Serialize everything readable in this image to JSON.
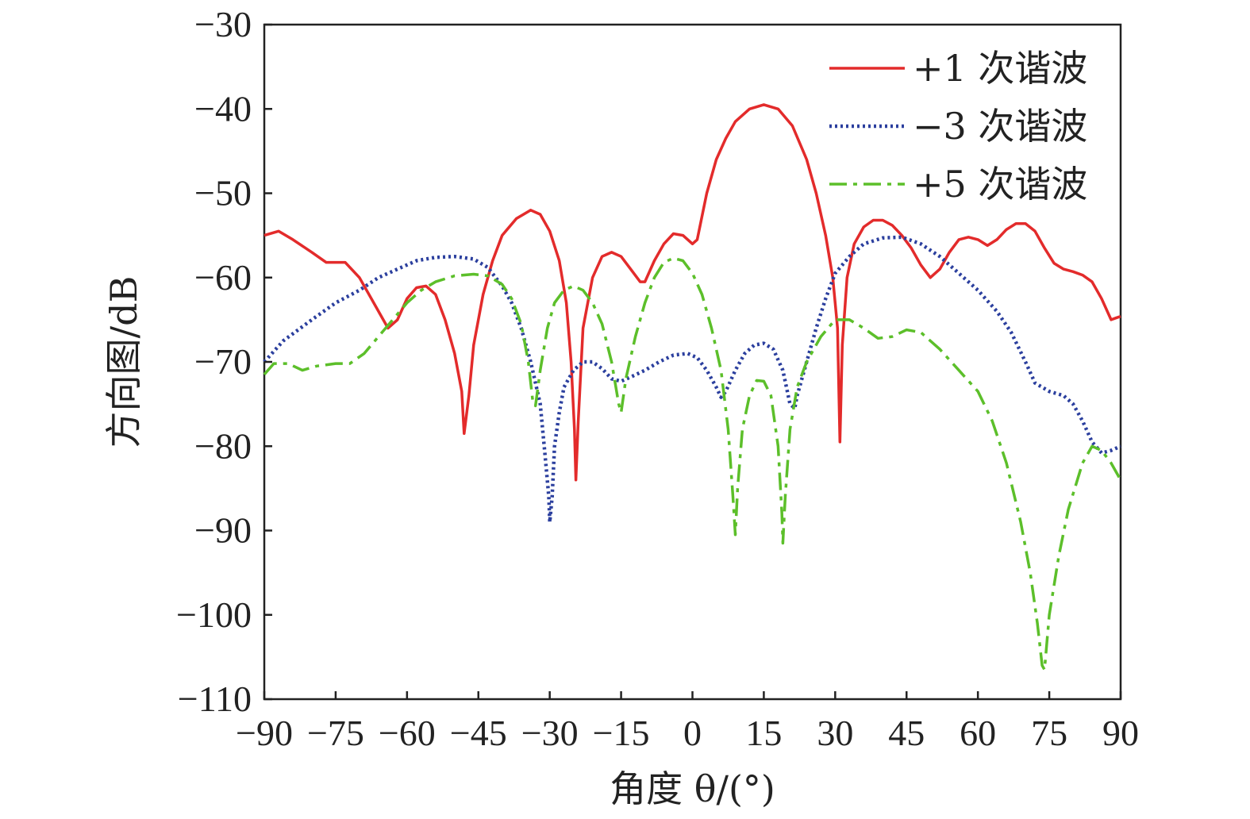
{
  "chart_data": {
    "type": "line",
    "title": "",
    "xlabel": "角度 θ/(°)",
    "ylabel": "方向图/dB",
    "xlim": [
      -90,
      90
    ],
    "ylim": [
      -110,
      -30
    ],
    "xticks": [
      -90,
      -75,
      -60,
      -45,
      -30,
      -15,
      0,
      15,
      30,
      45,
      60,
      75,
      90
    ],
    "yticks": [
      -30,
      -40,
      -50,
      -60,
      -70,
      -80,
      -90,
      -100,
      -110
    ],
    "xtick_labels": [
      "−90",
      "−75",
      "−60",
      "−45",
      "−30",
      "−15",
      "0",
      "15",
      "30",
      "45",
      "60",
      "75",
      "90"
    ],
    "ytick_labels": [
      "−30",
      "−40",
      "−50",
      "−60",
      "−70",
      "−80",
      "−90",
      "−100",
      "−110"
    ],
    "grid": false,
    "legend_position": "top-right",
    "series": [
      {
        "name": "+1 次谐波",
        "color": "#e32b2b",
        "style": "solid",
        "points": [
          [
            -90,
            -55
          ],
          [
            -87,
            -54.5
          ],
          [
            -84,
            -55.5
          ],
          [
            -80,
            -57
          ],
          [
            -77,
            -58.2
          ],
          [
            -73,
            -58.2
          ],
          [
            -70,
            -60
          ],
          [
            -67,
            -63
          ],
          [
            -64,
            -66
          ],
          [
            -62,
            -65
          ],
          [
            -60,
            -62.5
          ],
          [
            -58,
            -61.2
          ],
          [
            -56,
            -61
          ],
          [
            -54,
            -62
          ],
          [
            -52,
            -65
          ],
          [
            -50,
            -69
          ],
          [
            -48.5,
            -73.5
          ],
          [
            -48,
            -78.5
          ],
          [
            -47,
            -74
          ],
          [
            -46,
            -68
          ],
          [
            -44,
            -62
          ],
          [
            -42,
            -58
          ],
          [
            -40,
            -55
          ],
          [
            -37,
            -53
          ],
          [
            -34,
            -52
          ],
          [
            -32,
            -52.5
          ],
          [
            -30,
            -54.5
          ],
          [
            -28,
            -58
          ],
          [
            -26.5,
            -63
          ],
          [
            -25.5,
            -70
          ],
          [
            -24.8,
            -78
          ],
          [
            -24.5,
            -84
          ],
          [
            -24,
            -77
          ],
          [
            -23,
            -66
          ],
          [
            -21,
            -60
          ],
          [
            -19,
            -57.5
          ],
          [
            -17,
            -57
          ],
          [
            -15,
            -57.5
          ],
          [
            -13,
            -59
          ],
          [
            -11,
            -60.5
          ],
          [
            -10,
            -60.5
          ],
          [
            -8,
            -58
          ],
          [
            -6,
            -56
          ],
          [
            -4,
            -54.8
          ],
          [
            -2,
            -55
          ],
          [
            0,
            -56
          ],
          [
            1,
            -55.5
          ],
          [
            3,
            -50
          ],
          [
            5,
            -46
          ],
          [
            7,
            -43.5
          ],
          [
            9,
            -41.5
          ],
          [
            12,
            -40
          ],
          [
            15,
            -39.5
          ],
          [
            18,
            -40
          ],
          [
            21,
            -42
          ],
          [
            24,
            -46
          ],
          [
            26,
            -50
          ],
          [
            28,
            -55
          ],
          [
            29.5,
            -60
          ],
          [
            30.5,
            -66
          ],
          [
            31,
            -79.5
          ],
          [
            31.5,
            -68
          ],
          [
            32.5,
            -60
          ],
          [
            34,
            -56
          ],
          [
            36,
            -54
          ],
          [
            38,
            -53.2
          ],
          [
            40,
            -53.2
          ],
          [
            42,
            -53.8
          ],
          [
            44,
            -55
          ],
          [
            46,
            -56.5
          ],
          [
            48,
            -58.5
          ],
          [
            50,
            -60
          ],
          [
            52,
            -59
          ],
          [
            54,
            -57
          ],
          [
            56,
            -55.5
          ],
          [
            58,
            -55.2
          ],
          [
            60,
            -55.5
          ],
          [
            62,
            -56.2
          ],
          [
            64,
            -55.5
          ],
          [
            66,
            -54.3
          ],
          [
            68,
            -53.6
          ],
          [
            70,
            -53.6
          ],
          [
            72,
            -54.5
          ],
          [
            74,
            -56.5
          ],
          [
            76,
            -58.3
          ],
          [
            78,
            -59
          ],
          [
            80,
            -59.3
          ],
          [
            82,
            -59.7
          ],
          [
            84,
            -60.5
          ],
          [
            86,
            -62.5
          ],
          [
            88,
            -65
          ],
          [
            89,
            -64.8
          ],
          [
            90,
            -64.6
          ]
        ]
      },
      {
        "name": "−3 次谐波",
        "color": "#2b3f9e",
        "style": "dotted",
        "points": [
          [
            -90,
            -70
          ],
          [
            -86,
            -67.5
          ],
          [
            -80,
            -65
          ],
          [
            -75,
            -63
          ],
          [
            -70,
            -61.5
          ],
          [
            -66,
            -60
          ],
          [
            -62,
            -59
          ],
          [
            -58,
            -58
          ],
          [
            -54,
            -57.6
          ],
          [
            -50,
            -57.5
          ],
          [
            -46,
            -57.8
          ],
          [
            -43,
            -58.8
          ],
          [
            -40,
            -61
          ],
          [
            -38,
            -63
          ],
          [
            -36,
            -66
          ],
          [
            -34,
            -70
          ],
          [
            -32,
            -75
          ],
          [
            -31,
            -81
          ],
          [
            -30.2,
            -86
          ],
          [
            -30,
            -89
          ],
          [
            -29.5,
            -86
          ],
          [
            -29,
            -80
          ],
          [
            -28,
            -76
          ],
          [
            -27,
            -73
          ],
          [
            -25,
            -71
          ],
          [
            -23,
            -70
          ],
          [
            -21,
            -70
          ],
          [
            -19,
            -70.8
          ],
          [
            -17,
            -72
          ],
          [
            -15,
            -72.3
          ],
          [
            -13,
            -71.8
          ],
          [
            -10,
            -71
          ],
          [
            -7,
            -70
          ],
          [
            -4,
            -69.2
          ],
          [
            -1,
            -69
          ],
          [
            1,
            -69.5
          ],
          [
            3,
            -71
          ],
          [
            5,
            -73
          ],
          [
            6,
            -74.2
          ],
          [
            7,
            -73.5
          ],
          [
            9,
            -71
          ],
          [
            11,
            -69
          ],
          [
            13,
            -68
          ],
          [
            15,
            -67.8
          ],
          [
            17,
            -68.5
          ],
          [
            19,
            -71
          ],
          [
            20.5,
            -75
          ],
          [
            21.5,
            -75.5
          ],
          [
            22,
            -74
          ],
          [
            24,
            -70
          ],
          [
            26,
            -66
          ],
          [
            28,
            -62.5
          ],
          [
            30,
            -59.5
          ],
          [
            33,
            -57.5
          ],
          [
            36,
            -56
          ],
          [
            40,
            -55.3
          ],
          [
            44,
            -55.2
          ],
          [
            48,
            -56
          ],
          [
            52,
            -57.5
          ],
          [
            56,
            -59.5
          ],
          [
            60,
            -61.5
          ],
          [
            64,
            -64
          ],
          [
            67,
            -66.5
          ],
          [
            70,
            -70
          ],
          [
            72,
            -72.5
          ],
          [
            75,
            -73.5
          ],
          [
            78,
            -74
          ],
          [
            80,
            -75
          ],
          [
            82,
            -77
          ],
          [
            84,
            -79.5
          ],
          [
            86,
            -80.8
          ],
          [
            88,
            -80.5
          ],
          [
            90,
            -80
          ]
        ]
      },
      {
        "name": "+5 次谐波",
        "color": "#5cbf2a",
        "style": "dashdot",
        "points": [
          [
            -90,
            -71.5
          ],
          [
            -88,
            -70.2
          ],
          [
            -85,
            -70.2
          ],
          [
            -82,
            -71
          ],
          [
            -79,
            -70.5
          ],
          [
            -75,
            -70.2
          ],
          [
            -72,
            -70.2
          ],
          [
            -69,
            -69
          ],
          [
            -66,
            -67
          ],
          [
            -63,
            -65
          ],
          [
            -60,
            -63
          ],
          [
            -57,
            -61.5
          ],
          [
            -54,
            -60.5
          ],
          [
            -50,
            -59.8
          ],
          [
            -46,
            -59.6
          ],
          [
            -43,
            -59.8
          ],
          [
            -40,
            -60.8
          ],
          [
            -38,
            -62.5
          ],
          [
            -36,
            -65.5
          ],
          [
            -34.5,
            -70
          ],
          [
            -33.5,
            -75
          ],
          [
            -33,
            -75.2
          ],
          [
            -32,
            -71
          ],
          [
            -30.5,
            -66
          ],
          [
            -29,
            -63
          ],
          [
            -27,
            -61.5
          ],
          [
            -25,
            -61
          ],
          [
            -23,
            -61.5
          ],
          [
            -21,
            -63
          ],
          [
            -19,
            -65.5
          ],
          [
            -17,
            -70
          ],
          [
            -15.5,
            -75
          ],
          [
            -15,
            -76
          ],
          [
            -14,
            -72
          ],
          [
            -12,
            -67
          ],
          [
            -10,
            -63
          ],
          [
            -8,
            -60
          ],
          [
            -6,
            -58.2
          ],
          [
            -4,
            -57.7
          ],
          [
            -2,
            -58
          ],
          [
            0,
            -59.5
          ],
          [
            2,
            -62
          ],
          [
            4,
            -66
          ],
          [
            6,
            -71
          ],
          [
            7.5,
            -78
          ],
          [
            8.5,
            -86
          ],
          [
            9,
            -90.5
          ],
          [
            9.5,
            -85
          ],
          [
            10.5,
            -78
          ],
          [
            12,
            -74
          ],
          [
            13.5,
            -72.2
          ],
          [
            15,
            -72.3
          ],
          [
            16.5,
            -74
          ],
          [
            18,
            -80
          ],
          [
            18.8,
            -88
          ],
          [
            19,
            -91.5
          ],
          [
            19.5,
            -86
          ],
          [
            20.5,
            -78
          ],
          [
            22,
            -73
          ],
          [
            24,
            -70
          ],
          [
            27,
            -67
          ],
          [
            30,
            -65
          ],
          [
            33,
            -65
          ],
          [
            36,
            -66
          ],
          [
            39,
            -67.2
          ],
          [
            42,
            -67
          ],
          [
            45,
            -66.2
          ],
          [
            48,
            -66.5
          ],
          [
            52,
            -68.5
          ],
          [
            56,
            -71
          ],
          [
            60,
            -73.5
          ],
          [
            63,
            -77
          ],
          [
            66,
            -82
          ],
          [
            69,
            -89
          ],
          [
            71,
            -95
          ],
          [
            72.5,
            -101
          ],
          [
            73.5,
            -106
          ],
          [
            74,
            -106.5
          ],
          [
            75,
            -100
          ],
          [
            77,
            -93
          ],
          [
            79,
            -87.5
          ],
          [
            82,
            -82
          ],
          [
            84,
            -80
          ],
          [
            86,
            -80.5
          ],
          [
            88,
            -82
          ],
          [
            90,
            -84
          ]
        ]
      }
    ]
  }
}
